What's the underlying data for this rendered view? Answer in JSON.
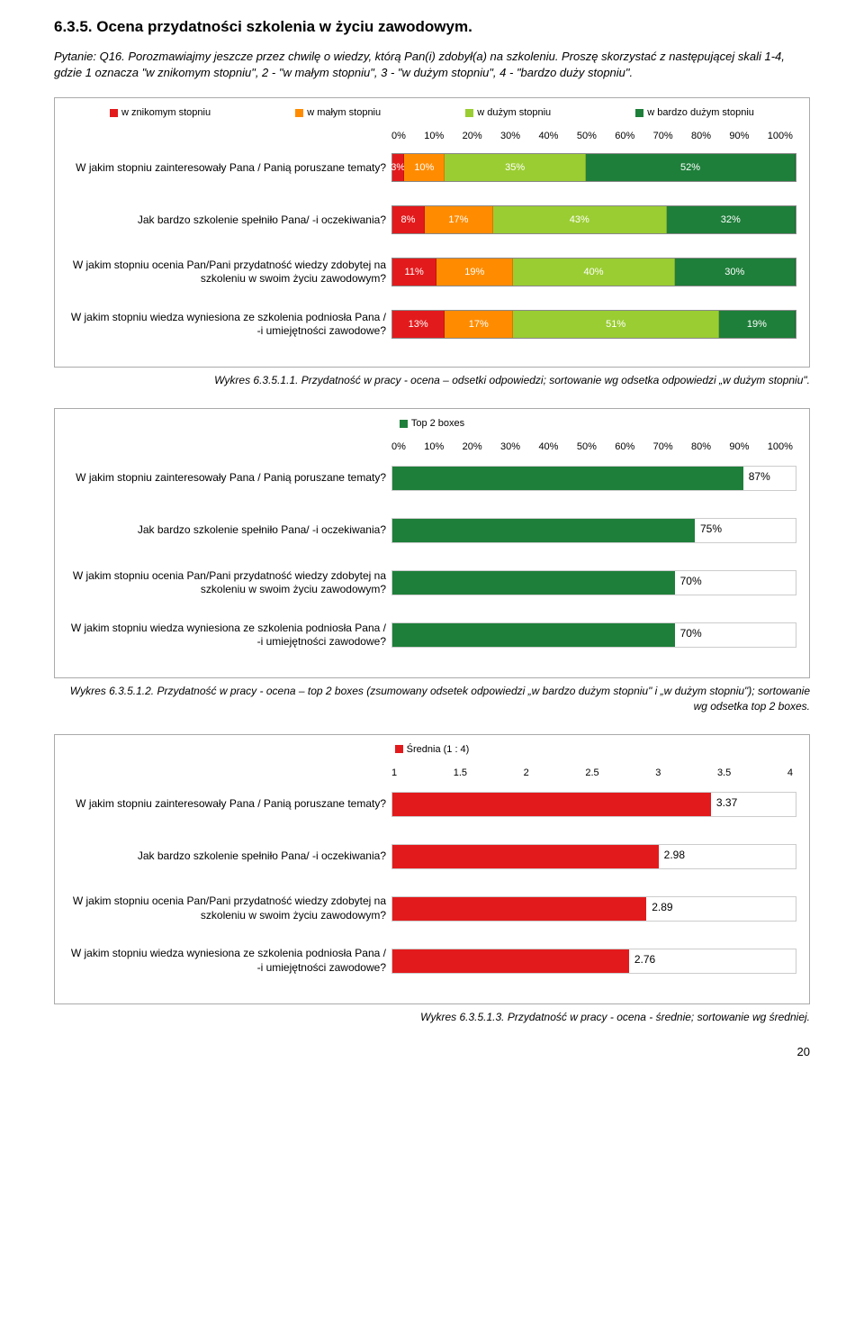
{
  "section_title": "6.3.5. Ocena przydatności szkolenia w życiu zawodowym.",
  "question_intro": "Pytanie: Q16. Porozmawiajmy jeszcze przez chwilę o wiedzy, którą Pan(i) zdobył(a) na szkoleniu. Proszę skorzystać z następującej skali 1-4, gdzie 1 oznacza \"w znikomym stopniu\", 2 - \"w małym stopniu\", 3 - \"w dużym stopniu\", 4 - \"bardzo duży stopniu\".",
  "colors": {
    "znikomy": "#e31a1c",
    "maly": "#ff8c00",
    "duzy": "#9acd32",
    "bardzo": "#1e7f3a",
    "top2": "#1e7f3a",
    "srednia": "#e31a1c"
  },
  "chart1": {
    "legend": [
      {
        "label": "w znikomym stopniu",
        "colorKey": "znikomy"
      },
      {
        "label": "w małym stopniu",
        "colorKey": "maly"
      },
      {
        "label": "w dużym stopniu",
        "colorKey": "duzy"
      },
      {
        "label": "w bardzo dużym stopniu",
        "colorKey": "bardzo"
      }
    ],
    "axis": [
      "0%",
      "10%",
      "20%",
      "30%",
      "40%",
      "50%",
      "60%",
      "70%",
      "80%",
      "90%",
      "100%"
    ],
    "rows": [
      {
        "label": "W jakim stopniu zainteresowały Pana / Panią poruszane tematy?",
        "segs": [
          {
            "v": 3,
            "t": "3%"
          },
          {
            "v": 10,
            "t": "10%"
          },
          {
            "v": 35,
            "t": "35%"
          },
          {
            "v": 52,
            "t": "52%"
          }
        ]
      },
      {
        "label": "Jak bardzo szkolenie spełniło Pana/ -i oczekiwania?",
        "segs": [
          {
            "v": 8,
            "t": "8%"
          },
          {
            "v": 17,
            "t": "17%"
          },
          {
            "v": 43,
            "t": "43%"
          },
          {
            "v": 32,
            "t": "32%"
          }
        ]
      },
      {
        "label": "W jakim stopniu ocenia Pan/Pani przydatność wiedzy zdobytej na szkoleniu w swoim życiu zawodowym?",
        "segs": [
          {
            "v": 11,
            "t": "11%"
          },
          {
            "v": 19,
            "t": "19%"
          },
          {
            "v": 40,
            "t": "40%"
          },
          {
            "v": 30,
            "t": "30%"
          }
        ]
      },
      {
        "label": "W jakim stopniu wiedza wyniesiona ze szkolenia podniosła Pana / -i umiejętności zawodowe?",
        "segs": [
          {
            "v": 13,
            "t": "13%"
          },
          {
            "v": 17,
            "t": "17%"
          },
          {
            "v": 51,
            "t": "51%"
          },
          {
            "v": 19,
            "t": "19%"
          }
        ]
      }
    ],
    "caption": "Wykres 6.3.5.1.1. Przydatność w pracy - ocena – odsetki odpowiedzi; sortowanie wg odsetka odpowiedzi „w dużym stopniu\"."
  },
  "chart2": {
    "legend_label": "Top 2 boxes",
    "axis": [
      "0%",
      "10%",
      "20%",
      "30%",
      "40%",
      "50%",
      "60%",
      "70%",
      "80%",
      "90%",
      "100%"
    ],
    "rows": [
      {
        "label": "W jakim stopniu zainteresowały Pana / Panią poruszane tematy?",
        "v": 87,
        "t": "87%"
      },
      {
        "label": "Jak bardzo szkolenie spełniło Pana/ -i oczekiwania?",
        "v": 75,
        "t": "75%"
      },
      {
        "label": "W jakim stopniu ocenia Pan/Pani przydatność wiedzy zdobytej na szkoleniu w swoim życiu zawodowym?",
        "v": 70,
        "t": "70%"
      },
      {
        "label": "W jakim stopniu wiedza wyniesiona ze szkolenia podniosła Pana / -i umiejętności zawodowe?",
        "v": 70,
        "t": "70%"
      }
    ],
    "caption": "Wykres 6.3.5.1.2. Przydatność w pracy - ocena – top 2 boxes (zsumowany odsetek odpowiedzi „w bardzo dużym stopniu\" i „w dużym stopniu\"); sortowanie wg odsetka top 2 boxes."
  },
  "chart3": {
    "legend_label": "Średnia (1 : 4)",
    "axis": [
      "1",
      "1.5",
      "2",
      "2.5",
      "3",
      "3.5",
      "4"
    ],
    "min": 1,
    "max": 4,
    "rows": [
      {
        "label": "W jakim stopniu zainteresowały Pana / Panią poruszane tematy?",
        "v": 3.37,
        "t": "3.37"
      },
      {
        "label": "Jak bardzo szkolenie spełniło Pana/ -i oczekiwania?",
        "v": 2.98,
        "t": "2.98"
      },
      {
        "label": "W jakim stopniu ocenia Pan/Pani przydatność wiedzy zdobytej na szkoleniu w swoim życiu zawodowym?",
        "v": 2.89,
        "t": "2.89"
      },
      {
        "label": "W jakim stopniu wiedza wyniesiona ze szkolenia podniosła Pana / -i umiejętności zawodowe?",
        "v": 2.76,
        "t": "2.76"
      }
    ],
    "caption": "Wykres 6.3.5.1.3. Przydatność w pracy - ocena - średnie; sortowanie wg średniej."
  },
  "page_number": "20"
}
